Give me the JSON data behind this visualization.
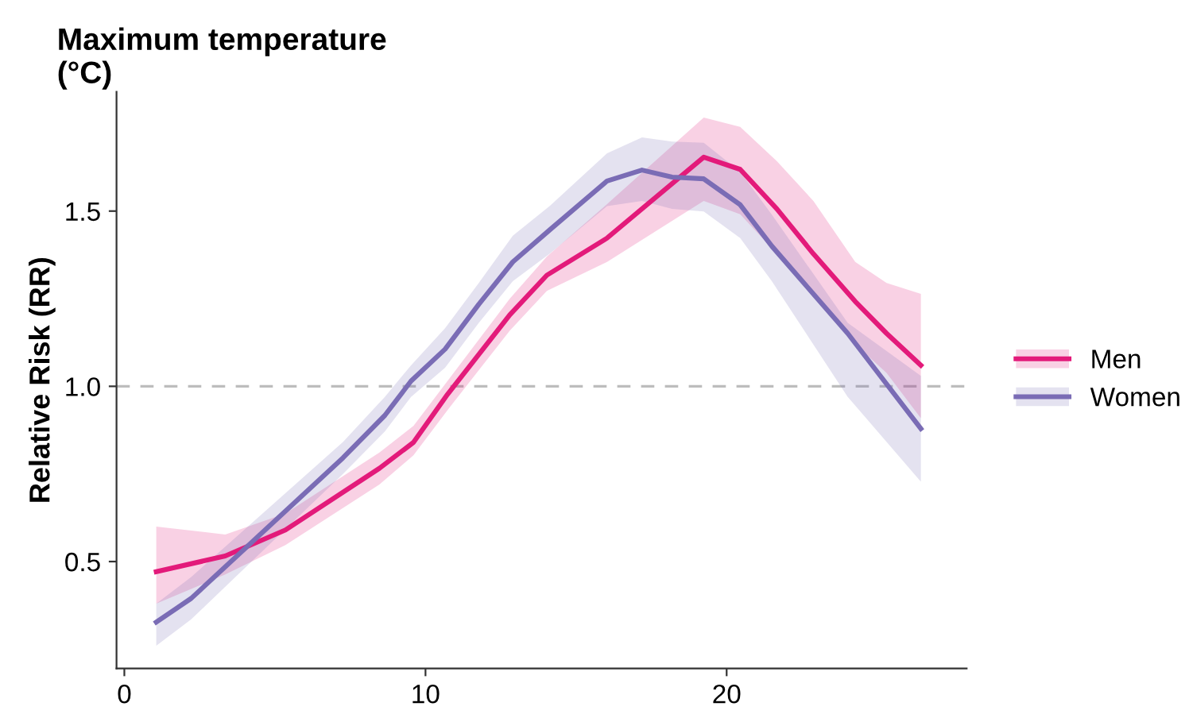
{
  "chart_data": {
    "type": "line",
    "title": "Maximum temperature\n(°C)",
    "ylabel": "Relative Risk (RR)",
    "xlim": [
      -0.26,
      27.97
    ],
    "xticks": [
      0,
      10,
      20
    ],
    "ylim": [
      0.195,
      1.84
    ],
    "yticks": [
      {
        "value": 0.5,
        "label": "0.5"
      },
      {
        "value": 1.0,
        "label": "1.0"
      },
      {
        "value": 1.5,
        "label": "1.5"
      }
    ],
    "grid": false,
    "legend": "right",
    "line_style": "solid",
    "marker": "none",
    "ref_lines": [
      {
        "axis": "y",
        "value": 1.0,
        "label": null,
        "color": "#bdbdbd",
        "line_style": "dashed"
      }
    ],
    "series": [
      {
        "name": "Men",
        "color": "#e31a7a",
        "x": [
          1.06,
          3.35,
          5.35,
          8.47,
          9.6,
          10.73,
          12.8,
          14.03,
          16.03,
          19.24,
          20.45,
          21.67,
          22.88,
          24.27,
          25.31,
          26.45
        ],
        "values": [
          0.471,
          0.516,
          0.59,
          0.766,
          0.84,
          0.977,
          1.204,
          1.317,
          1.423,
          1.654,
          1.619,
          1.506,
          1.378,
          1.242,
          1.151,
          1.06
        ],
        "upper": [
          0.6,
          0.577,
          0.637,
          0.811,
          0.887,
          1.015,
          1.25,
          1.37,
          1.52,
          1.767,
          1.74,
          1.642,
          1.529,
          1.355,
          1.295,
          1.264
        ],
        "lower": [
          0.38,
          0.463,
          0.547,
          0.72,
          0.803,
          0.932,
          1.159,
          1.272,
          1.355,
          1.529,
          1.491,
          1.378,
          1.257,
          1.12,
          1.038,
          0.909
        ]
      },
      {
        "name": "Women",
        "color": "#7a6cb5",
        "x": [
          1.06,
          2.22,
          7.26,
          8.65,
          9.52,
          10.65,
          11.77,
          12.9,
          14.12,
          16.03,
          17.19,
          18.19,
          19.24,
          20.45,
          21.5,
          24.02,
          26.45
        ],
        "values": [
          0.327,
          0.395,
          0.796,
          0.917,
          1.015,
          1.106,
          1.234,
          1.355,
          1.446,
          1.586,
          1.617,
          1.597,
          1.592,
          1.518,
          1.4,
          1.151,
          0.879
        ],
        "upper": [
          0.38,
          0.456,
          0.841,
          0.97,
          1.06,
          1.166,
          1.295,
          1.43,
          1.514,
          1.665,
          1.71,
          1.698,
          1.695,
          1.612,
          1.49,
          1.181,
          1.03
        ],
        "lower": [
          0.26,
          0.335,
          0.75,
          0.871,
          0.97,
          1.053,
          1.181,
          1.3,
          1.378,
          1.514,
          1.529,
          1.506,
          1.499,
          1.423,
          1.3,
          0.97,
          0.728
        ]
      }
    ]
  }
}
